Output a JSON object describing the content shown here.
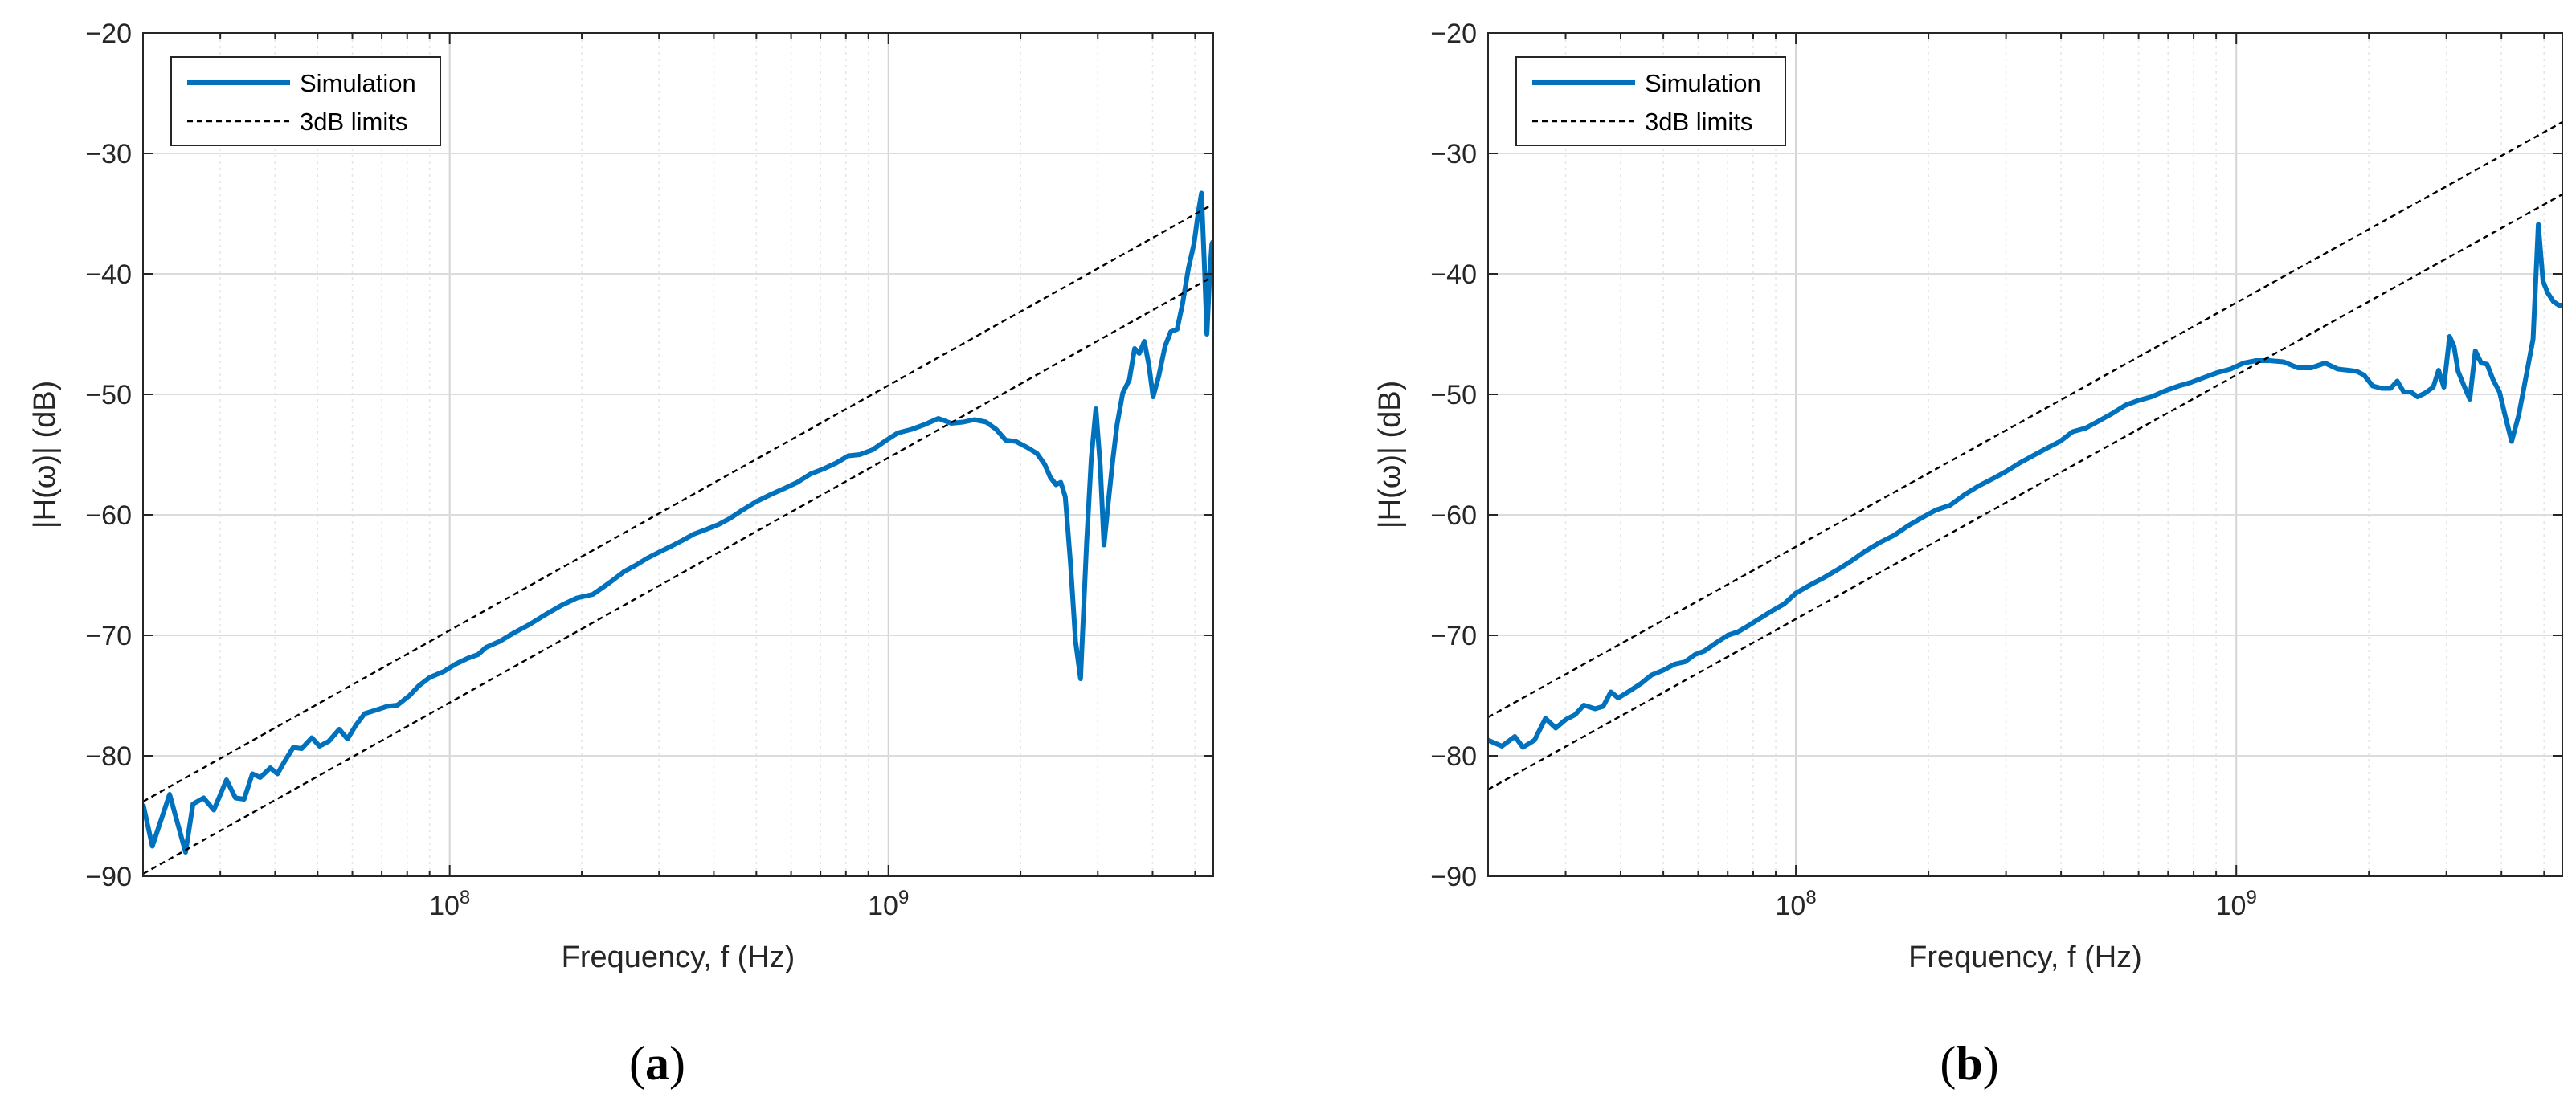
{
  "chart_data": [
    {
      "type": "line",
      "panel_label": "a",
      "xlabel": "Frequency, f (Hz)",
      "ylabel": "|H(ω)| (dB)",
      "x_scale": "log",
      "xlim": [
        20000000,
        5500000000
      ],
      "ylim": [
        -90,
        -20
      ],
      "y_ticks": [
        -90,
        -80,
        -70,
        -60,
        -50,
        -40,
        -30,
        -20
      ],
      "x_tick_labels": [
        {
          "value": 100000000,
          "base": "10",
          "exp": "8"
        },
        {
          "value": 1000000000,
          "base": "10",
          "exp": "9"
        }
      ],
      "grid": true,
      "legend_position": "top-left",
      "series": [
        {
          "name": "Simulation",
          "style": "solid",
          "color": "#0072BD",
          "points": [
            [
              20000000,
              -84
            ],
            [
              21000000,
              -87.5
            ],
            [
              23000000,
              -83.2
            ],
            [
              25000000,
              -88
            ],
            [
              26000000,
              -84
            ],
            [
              27500000,
              -83.5
            ],
            [
              29000000,
              -84.5
            ],
            [
              31000000,
              -82
            ],
            [
              32500000,
              -83.5
            ],
            [
              34000000,
              -83.6
            ],
            [
              35500000,
              -81.5
            ],
            [
              37000000,
              -81.8
            ],
            [
              39000000,
              -81
            ],
            [
              40500000,
              -81.5
            ],
            [
              42000000,
              -80.5
            ],
            [
              44000000,
              -79.3
            ],
            [
              46000000,
              -79.4
            ],
            [
              48500000,
              -78.5
            ],
            [
              50500000,
              -79.2
            ],
            [
              53000000,
              -78.8
            ],
            [
              56000000,
              -77.8
            ],
            [
              58500000,
              -78.6
            ],
            [
              61000000,
              -77.5
            ],
            [
              64000000,
              -76.5
            ],
            [
              68000000,
              -76.2
            ],
            [
              72000000,
              -75.9
            ],
            [
              76000000,
              -75.8
            ],
            [
              81000000,
              -75
            ],
            [
              85000000,
              -74.2
            ],
            [
              90000000,
              -73.5
            ],
            [
              97000000,
              -73
            ],
            [
              103000000,
              -72.4
            ],
            [
              110000000,
              -71.9
            ],
            [
              116000000,
              -71.6
            ],
            [
              121000000,
              -71
            ],
            [
              130000000,
              -70.5
            ],
            [
              140000000,
              -69.8
            ],
            [
              152000000,
              -69.1
            ],
            [
              165000000,
              -68.3
            ],
            [
              180000000,
              -67.5
            ],
            [
              195000000,
              -66.9
            ],
            [
              212000000,
              -66.6
            ],
            [
              230000000,
              -65.7
            ],
            [
              250000000,
              -64.7
            ],
            [
              265000000,
              -64.2
            ],
            [
              282000000,
              -63.6
            ],
            [
              300000000,
              -63.1
            ],
            [
              320000000,
              -62.6
            ],
            [
              340000000,
              -62.1
            ],
            [
              360000000,
              -61.6
            ],
            [
              385000000,
              -61.2
            ],
            [
              410000000,
              -60.8
            ],
            [
              435000000,
              -60.3
            ],
            [
              465000000,
              -59.6
            ],
            [
              500000000,
              -58.9
            ],
            [
              540000000,
              -58.3
            ],
            [
              580000000,
              -57.8
            ],
            [
              620000000,
              -57.3
            ],
            [
              665000000,
              -56.6
            ],
            [
              710000000,
              -56.2
            ],
            [
              760000000,
              -55.7
            ],
            [
              810000000,
              -55.1
            ],
            [
              860000000,
              -55
            ],
            [
              920000000,
              -54.6
            ],
            [
              990000000,
              -53.8
            ],
            [
              1050000000,
              -53.2
            ],
            [
              1130000000,
              -52.9
            ],
            [
              1210000000,
              -52.5
            ],
            [
              1300000000,
              -52
            ],
            [
              1390000000,
              -52.4
            ],
            [
              1480000000,
              -52.3
            ],
            [
              1570000000,
              -52.1
            ],
            [
              1670000000,
              -52.3
            ],
            [
              1760000000,
              -52.9
            ],
            [
              1850000000,
              -53.8
            ],
            [
              1950000000,
              -53.9
            ],
            [
              2070000000,
              -54.4
            ],
            [
              2180000000,
              -54.9
            ],
            [
              2270000000,
              -55.8
            ],
            [
              2340000000,
              -56.9
            ],
            [
              2410000000,
              -57.5
            ],
            [
              2470000000,
              -57.3
            ],
            [
              2530000000,
              -58.5
            ],
            [
              2600000000,
              -64
            ],
            [
              2670000000,
              -70.5
            ],
            [
              2740000000,
              -73.6
            ],
            [
              2830000000,
              -62.3
            ],
            [
              2900000000,
              -55.3
            ],
            [
              2970000000,
              -51.2
            ],
            [
              3040000000,
              -56
            ],
            [
              3100000000,
              -62.5
            ],
            [
              3170000000,
              -59
            ],
            [
              3250000000,
              -55.3
            ],
            [
              3320000000,
              -52.5
            ],
            [
              3420000000,
              -49.9
            ],
            [
              3540000000,
              -48.8
            ],
            [
              3640000000,
              -46.2
            ],
            [
              3730000000,
              -46.6
            ],
            [
              3830000000,
              -45.6
            ],
            [
              3920000000,
              -47.5
            ],
            [
              4010000000,
              -50.2
            ],
            [
              4130000000,
              -48.5
            ],
            [
              4270000000,
              -46
            ],
            [
              4400000000,
              -44.8
            ],
            [
              4550000000,
              -44.6
            ],
            [
              4680000000,
              -42.5
            ],
            [
              4830000000,
              -39.5
            ],
            [
              4970000000,
              -37.5
            ],
            [
              5090000000,
              -34.8
            ],
            [
              5170000000,
              -33.3
            ],
            [
              5260000000,
              -40
            ],
            [
              5320000000,
              -45
            ],
            [
              5400000000,
              -40
            ],
            [
              5460000000,
              -37.5
            ],
            [
              5500000000,
              -37.3
            ]
          ]
        },
        {
          "name": "3dB limits",
          "style": "dashed",
          "color": "#000000",
          "lines": [
            [
              [
                20000000,
                -83.8
              ],
              [
                5500000000,
                -34.2
              ]
            ],
            [
              [
                20000000,
                -89.8
              ],
              [
                5500000000,
                -40.2
              ]
            ]
          ]
        }
      ]
    },
    {
      "type": "line",
      "panel_label": "b",
      "xlabel": "Frequency, f (Hz)",
      "ylabel": "|H(ω)| (dB)",
      "x_scale": "log",
      "xlim": [
        20000000,
        5500000000
      ],
      "ylim": [
        -90,
        -20
      ],
      "y_ticks": [
        -90,
        -80,
        -70,
        -60,
        -50,
        -40,
        -30,
        -20
      ],
      "x_tick_labels": [
        {
          "value": 100000000,
          "base": "10",
          "exp": "8"
        },
        {
          "value": 1000000000,
          "base": "10",
          "exp": "9"
        }
      ],
      "grid": true,
      "legend_position": "top-left",
      "series": [
        {
          "name": "Simulation",
          "style": "solid",
          "color": "#0072BD",
          "points": [
            [
              20000000,
              -78.7
            ],
            [
              21500000,
              -79.2
            ],
            [
              23000000,
              -78.4
            ],
            [
              24000000,
              -79.3
            ],
            [
              25500000,
              -78.7
            ],
            [
              27000000,
              -76.9
            ],
            [
              28500000,
              -77.7
            ],
            [
              30000000,
              -77
            ],
            [
              31500000,
              -76.6
            ],
            [
              33000000,
              -75.8
            ],
            [
              35000000,
              -76.1
            ],
            [
              36500000,
              -75.9
            ],
            [
              38000000,
              -74.7
            ],
            [
              39500000,
              -75.2
            ],
            [
              42000000,
              -74.6
            ],
            [
              44500000,
              -74
            ],
            [
              47000000,
              -73.3
            ],
            [
              50000000,
              -72.9
            ],
            [
              53000000,
              -72.4
            ],
            [
              56000000,
              -72.2
            ],
            [
              59000000,
              -71.6
            ],
            [
              62000000,
              -71.3
            ],
            [
              66000000,
              -70.6
            ],
            [
              70000000,
              -70
            ],
            [
              74000000,
              -69.7
            ],
            [
              78000000,
              -69.2
            ],
            [
              82000000,
              -68.7
            ],
            [
              88000000,
              -68
            ],
            [
              94000000,
              -67.4
            ],
            [
              100000000,
              -66.5
            ],
            [
              108000000,
              -65.8
            ],
            [
              116000000,
              -65.2
            ],
            [
              125000000,
              -64.5
            ],
            [
              134000000,
              -63.8
            ],
            [
              144000000,
              -63
            ],
            [
              155000000,
              -62.3
            ],
            [
              167000000,
              -61.7
            ],
            [
              180000000,
              -60.9
            ],
            [
              194000000,
              -60.2
            ],
            [
              208000000,
              -59.6
            ],
            [
              224000000,
              -59.2
            ],
            [
              242000000,
              -58.3
            ],
            [
              260000000,
              -57.6
            ],
            [
              280000000,
              -57
            ],
            [
              300000000,
              -56.4
            ],
            [
              322000000,
              -55.7
            ],
            [
              345000000,
              -55.1
            ],
            [
              370000000,
              -54.5
            ],
            [
              398000000,
              -53.9
            ],
            [
              425000000,
              -53.1
            ],
            [
              455000000,
              -52.8
            ],
            [
              488000000,
              -52.2
            ],
            [
              522000000,
              -51.6
            ],
            [
              560000000,
              -50.9
            ],
            [
              600000000,
              -50.5
            ],
            [
              642000000,
              -50.2
            ],
            [
              690000000,
              -49.7
            ],
            [
              740000000,
              -49.3
            ],
            [
              790000000,
              -49
            ],
            [
              845000000,
              -48.6
            ],
            [
              905000000,
              -48.2
            ],
            [
              970000000,
              -47.9
            ],
            [
              1040000000,
              -47.4
            ],
            [
              1110000000,
              -47.2
            ],
            [
              1190000000,
              -47.2
            ],
            [
              1280000000,
              -47.3
            ],
            [
              1380000000,
              -47.8
            ],
            [
              1480000000,
              -47.8
            ],
            [
              1590000000,
              -47.4
            ],
            [
              1700000000,
              -47.9
            ],
            [
              1800000000,
              -48
            ],
            [
              1880000000,
              -48.1
            ],
            [
              1950000000,
              -48.4
            ],
            [
              2040000000,
              -49.3
            ],
            [
              2140000000,
              -49.5
            ],
            [
              2240000000,
              -49.5
            ],
            [
              2320000000,
              -48.9
            ],
            [
              2400000000,
              -49.8
            ],
            [
              2490000000,
              -49.8
            ],
            [
              2580000000,
              -50.2
            ],
            [
              2680000000,
              -49.9
            ],
            [
              2800000000,
              -49.4
            ],
            [
              2880000000,
              -48
            ],
            [
              2960000000,
              -49.4
            ],
            [
              3050000000,
              -45.2
            ],
            [
              3120000000,
              -46
            ],
            [
              3190000000,
              -48.1
            ],
            [
              3290000000,
              -49.3
            ],
            [
              3390000000,
              -50.4
            ],
            [
              3490000000,
              -46.4
            ],
            [
              3600000000,
              -47.4
            ],
            [
              3710000000,
              -47.5
            ],
            [
              3830000000,
              -48.8
            ],
            [
              3960000000,
              -49.8
            ],
            [
              4080000000,
              -51.8
            ],
            [
              4220000000,
              -53.9
            ],
            [
              4380000000,
              -51.7
            ],
            [
              4550000000,
              -48.5
            ],
            [
              4720000000,
              -45.4
            ],
            [
              4850000000,
              -35.9
            ],
            [
              4970000000,
              -40.6
            ],
            [
              5100000000,
              -41.6
            ],
            [
              5250000000,
              -42.3
            ],
            [
              5400000000,
              -42.6
            ],
            [
              5500000000,
              -42.6
            ]
          ]
        },
        {
          "name": "3dB limits",
          "style": "dashed",
          "color": "#000000",
          "lines": [
            [
              [
                20000000,
                -76.8
              ],
              [
                5500000000,
                -27.4
              ]
            ],
            [
              [
                20000000,
                -82.8
              ],
              [
                5500000000,
                -33.4
              ]
            ]
          ]
        }
      ]
    }
  ]
}
